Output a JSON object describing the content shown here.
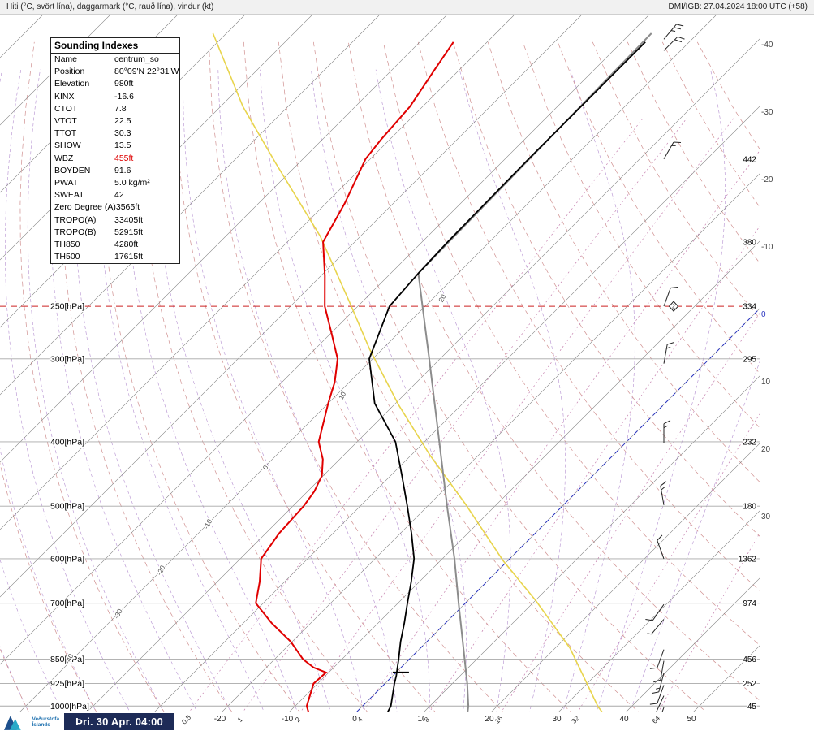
{
  "header": {
    "left": "Hiti (°C, svört lína), daggarmark (°C, rauð lína), vindur (kt)",
    "right": "DMI/IGB: 27.04.2024 18:00 UTC (+58)"
  },
  "indexes": {
    "title": "Sounding Indexes",
    "rows": [
      {
        "label": "Name",
        "value": "centrum_so"
      },
      {
        "label": "Position",
        "value": "80°09'N 22°31'W"
      },
      {
        "label": "Elevation",
        "value": "980ft"
      },
      {
        "label": "KINX",
        "value": "-16.6"
      },
      {
        "label": "CTOT",
        "value": "7.8"
      },
      {
        "label": "VTOT",
        "value": "22.5"
      },
      {
        "label": "TTOT",
        "value": "30.3"
      },
      {
        "label": "SHOW",
        "value": "13.5"
      },
      {
        "label": "WBZ",
        "value": "455ft",
        "color": "#dd0000"
      },
      {
        "label": "BOYDEN",
        "value": "91.6"
      },
      {
        "label": "PWAT",
        "value": "5.0 kg/m²"
      },
      {
        "label": "SWEAT",
        "value": "42"
      },
      {
        "label": "Zero Degree (A)",
        "value": "3565ft"
      },
      {
        "label": "TROPO(A)",
        "value": "33405ft"
      },
      {
        "label": "TROPO(B)",
        "value": "52915ft"
      },
      {
        "label": "TH850",
        "value": "4280ft"
      },
      {
        "label": "TH500",
        "value": "17615ft"
      }
    ]
  },
  "footer": {
    "date": "Þri. 30 Apr. 04:00",
    "logo_line1": "Veðurstofa",
    "logo_line2": "Íslands"
  },
  "colors": {
    "temperature": "#000000",
    "dewpoint": "#e00000",
    "standard_atmosphere": "#8c8c8c",
    "reference_yellow": "#e8d44c",
    "freezing_line": "#2a35c0",
    "tropopause_line": "#cc2222",
    "dry_adiabat": "#d09090",
    "moist_adiabat": "#b48fd0",
    "mixing_ratio": "#c57fae",
    "isotherm": "#7a7a7a",
    "pressure_line": "#a8a8a8"
  },
  "chart_data": {
    "type": "skewt-sounding",
    "pressure_levels": [
      {
        "p": 250,
        "label": "250[hPa]",
        "style": "tropopause"
      },
      {
        "p": 300,
        "label": "300[hPa]",
        "style": "normal"
      },
      {
        "p": 400,
        "label": "400[hPa]",
        "style": "normal"
      },
      {
        "p": 500,
        "label": "500[hPa]",
        "style": "normal"
      },
      {
        "p": 600,
        "label": "600[hPa]",
        "style": "normal"
      },
      {
        "p": 700,
        "label": "700[hPa]",
        "style": "normal"
      },
      {
        "p": 850,
        "label": "850[hPa]",
        "style": "normal"
      },
      {
        "p": 925,
        "label": "925[hPa]",
        "style": "normal"
      },
      {
        "p": 1000,
        "label": "1000[hPa]",
        "style": "normal"
      }
    ],
    "bottom_temp_ticks_c": [
      -20,
      -10,
      0,
      10,
      20,
      30,
      40,
      50
    ],
    "right_temp_ticks_c": [
      -40,
      -30,
      -20,
      -10,
      0,
      10,
      20,
      30
    ],
    "right_height_labels": [
      {
        "p": 150,
        "text": "442"
      },
      {
        "p": 200,
        "text": "380"
      },
      {
        "p": 250,
        "text": "334"
      },
      {
        "p": 300,
        "text": "295"
      },
      {
        "p": 400,
        "text": "232"
      },
      {
        "p": 500,
        "text": "180"
      },
      {
        "p": 600,
        "text": "1362"
      },
      {
        "p": 700,
        "text": "974"
      },
      {
        "p": 850,
        "text": "456"
      },
      {
        "p": 925,
        "text": "252"
      },
      {
        "p": 1000,
        "text": "45"
      }
    ],
    "mixing_ratio_g_kg": [
      0.5,
      1,
      2,
      4,
      8,
      16,
      32,
      64
    ],
    "adiabat_inline_labels": [
      {
        "text": "20",
        "p": 244,
        "t": -48.2
      },
      {
        "text": "10",
        "p": 342,
        "t": -48.6
      },
      {
        "text": "0",
        "p": 439,
        "t": -49.3
      },
      {
        "text": "-10",
        "p": 534,
        "t": -49.5
      },
      {
        "text": "-20",
        "p": 627,
        "t": -49.6
      },
      {
        "text": "-30",
        "p": 729,
        "t": -49.5
      },
      {
        "text": "-40",
        "p": 852,
        "t": -50.1
      }
    ],
    "temperature_curve": [
      [
        100,
        -56.5
      ],
      [
        150,
        -56.5
      ],
      [
        200,
        -56.2
      ],
      [
        223,
        -55.9
      ],
      [
        250,
        -55.3
      ],
      [
        300,
        -50.5
      ],
      [
        350,
        -43.1
      ],
      [
        400,
        -34.3
      ],
      [
        450,
        -28.3
      ],
      [
        500,
        -23.0
      ],
      [
        550,
        -18.3
      ],
      [
        600,
        -14.2
      ],
      [
        650,
        -11.2
      ],
      [
        700,
        -8.6
      ],
      [
        750,
        -6.1
      ],
      [
        800,
        -3.9
      ],
      [
        850,
        -1.6
      ],
      [
        900,
        0.5
      ],
      [
        925,
        1.4
      ],
      [
        1000,
        4.2
      ],
      [
        1020,
        4.6
      ]
    ],
    "dewpoint_curve": [
      [
        100,
        -85.0
      ],
      [
        110,
        -83.7
      ],
      [
        125,
        -81.9
      ],
      [
        140,
        -81.3
      ],
      [
        150,
        -80.7
      ],
      [
        175,
        -77.2
      ],
      [
        200,
        -74.7
      ],
      [
        225,
        -69.4
      ],
      [
        250,
        -64.9
      ],
      [
        275,
        -59.8
      ],
      [
        300,
        -55.2
      ],
      [
        325,
        -52.2
      ],
      [
        350,
        -50.0
      ],
      [
        400,
        -45.7
      ],
      [
        425,
        -42.5
      ],
      [
        450,
        -40.2
      ],
      [
        475,
        -39.0
      ],
      [
        500,
        -38.4
      ],
      [
        550,
        -38.0
      ],
      [
        600,
        -36.9
      ],
      [
        650,
        -33.7
      ],
      [
        700,
        -31.1
      ],
      [
        750,
        -25.8
      ],
      [
        800,
        -20.2
      ],
      [
        850,
        -15.8
      ],
      [
        875,
        -13.0
      ],
      [
        890,
        -10.4
      ],
      [
        925,
        -10.6
      ],
      [
        1000,
        -8.3
      ],
      [
        1020,
        -7.2
      ]
    ],
    "standard_atmosphere_curve": [
      [
        97,
        -56.9
      ],
      [
        223,
        -55.9
      ],
      [
        250,
        -50.4
      ],
      [
        300,
        -41.6
      ],
      [
        400,
        -27.8
      ],
      [
        500,
        -17.1
      ],
      [
        600,
        -8.2
      ],
      [
        700,
        -1.0
      ],
      [
        850,
        8.2
      ],
      [
        925,
        12.2
      ],
      [
        1000,
        15.7
      ],
      [
        1035,
        17.0
      ]
    ],
    "yellow_reference_curve": [
      [
        97,
        -122.0
      ],
      [
        125,
        -106.7
      ],
      [
        152,
        -93.5
      ],
      [
        196,
        -76.0
      ],
      [
        245,
        -62.2
      ],
      [
        290,
        -51.9
      ],
      [
        352,
        -39.3
      ],
      [
        419,
        -27.2
      ],
      [
        497,
        -14.6
      ],
      [
        604,
        -0.7
      ],
      [
        694,
        10.1
      ],
      [
        818,
        22.2
      ],
      [
        1003,
        35.1
      ],
      [
        1035,
        37.5
      ]
    ],
    "freezing_isotherm_c": 0,
    "significant_level_tick": {
      "p": 890,
      "t": 0.7
    },
    "tropopause_marker": {
      "p": 250,
      "text": "2"
    },
    "wind_barbs": [
      {
        "p": 99,
        "speed_kt": 25,
        "dir_deg": 40
      },
      {
        "p": 103,
        "speed_kt": 20,
        "dir_deg": 45
      },
      {
        "p": 150,
        "speed_kt": 15,
        "dir_deg": 30
      },
      {
        "p": 250,
        "speed_kt": 10,
        "dir_deg": 20
      },
      {
        "p": 305,
        "speed_kt": 15,
        "dir_deg": 10
      },
      {
        "p": 402,
        "speed_kt": 15,
        "dir_deg": 0
      },
      {
        "p": 498,
        "speed_kt": 15,
        "dir_deg": 350
      },
      {
        "p": 600,
        "speed_kt": 10,
        "dir_deg": 340
      },
      {
        "p": 703,
        "speed_kt": 10,
        "dir_deg": 215
      },
      {
        "p": 740,
        "speed_kt": 5,
        "dir_deg": 220
      },
      {
        "p": 822,
        "speed_kt": 10,
        "dir_deg": 200
      },
      {
        "p": 855,
        "speed_kt": 10,
        "dir_deg": 190
      },
      {
        "p": 892,
        "speed_kt": 15,
        "dir_deg": 195
      },
      {
        "p": 930,
        "speed_kt": 10,
        "dir_deg": 200
      },
      {
        "p": 965,
        "speed_kt": 10,
        "dir_deg": 205
      },
      {
        "p": 1005,
        "speed_kt": 10,
        "dir_deg": 200
      },
      {
        "p": 1038,
        "speed_kt": 5,
        "dir_deg": 195
      }
    ]
  }
}
